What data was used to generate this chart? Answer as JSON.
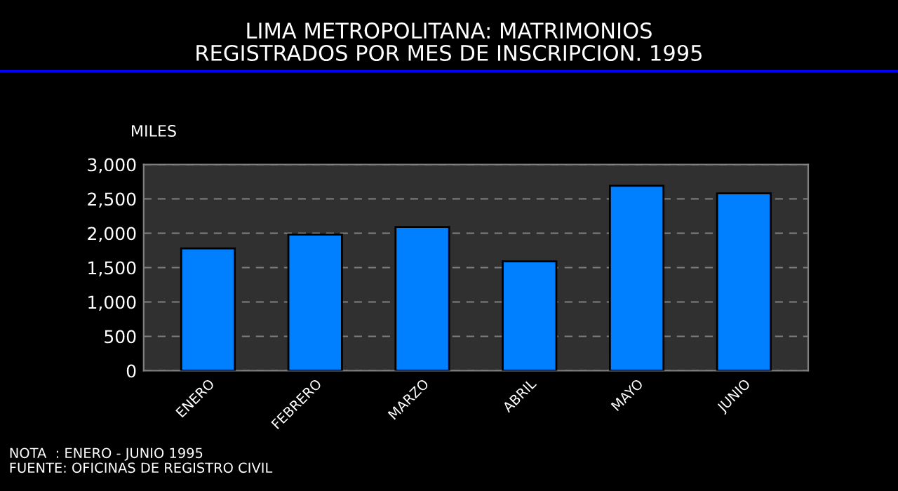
{
  "chart_data": {
    "type": "bar",
    "title": "LIMA METROPOLITANA: MATRIMONIOS\nREGISTRADOS POR MES DE INSCRIPCION. 1995",
    "ylabel": "MILES",
    "categories": [
      "ENERO",
      "FEBRERO",
      "MARZO",
      "ABRIL",
      "MAYO",
      "JUNIO"
    ],
    "values": [
      1780,
      1980,
      2090,
      1590,
      2690,
      2580
    ],
    "color": "#0080ff",
    "ylim": [
      0,
      3000
    ],
    "yticks": [
      {
        "value": 0,
        "label": "0"
      },
      {
        "value": 500,
        "label": "500"
      },
      {
        "value": 1000,
        "label": "1,000"
      },
      {
        "value": 1500,
        "label": "1,500"
      },
      {
        "value": 2000,
        "label": "2,000"
      },
      {
        "value": 2500,
        "label": "2,500"
      },
      {
        "value": 3000,
        "label": "3,000"
      }
    ],
    "grid": "y",
    "annotations": [
      "NOTA  : ENERO - JUNIO 1995",
      "FUENTE: OFICINAS DE REGISTRO CIVIL"
    ]
  }
}
